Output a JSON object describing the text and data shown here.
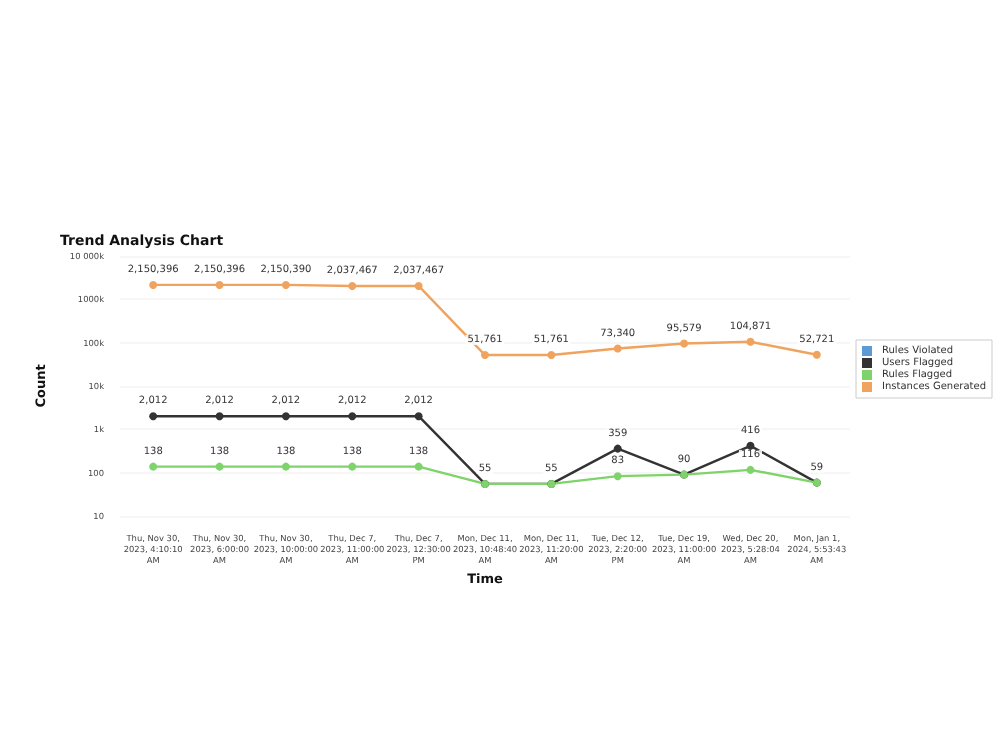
{
  "chart_data": {
    "type": "line",
    "title": "Trend Analysis Chart",
    "xlabel": "Time",
    "ylabel": "Count",
    "categories": [
      "Thu, Nov 30, 2023, 4:10:10 AM",
      "Thu, Nov 30, 2023, 6:00:00 AM",
      "Thu, Nov 30, 2023, 10:00:00 AM",
      "Thu, Dec 7, 2023, 11:00:00 AM",
      "Thu, Dec 7, 2023, 12:30:00 PM",
      "Mon, Dec 11, 2023, 10:48:40 AM",
      "Mon, Dec 11, 2023, 11:20:00 AM",
      "Tue, Dec 12, 2023, 2:20:00 PM",
      "Tue, Dec 19, 2023, 11:00:00 AM",
      "Wed, Dec 20, 2023, 5:28:04 AM",
      "Mon, Jan 1, 2024, 5:53:43 AM"
    ],
    "series": [
      {
        "name": "Rules Violated",
        "color": "#5b9bd5",
        "values": [
          null,
          null,
          null,
          null,
          null,
          null,
          null,
          null,
          null,
          null,
          null
        ]
      },
      {
        "name": "Users Flagged",
        "color": "#333333",
        "values": [
          2012,
          2012,
          2012,
          2012,
          2012,
          55,
          55,
          359,
          90,
          416,
          59
        ],
        "value_labels": [
          "2,012",
          "2,012",
          "2,012",
          "2,012",
          "2,012",
          "55",
          "55",
          "359",
          "90",
          "416",
          "59"
        ]
      },
      {
        "name": "Rules Flagged",
        "color": "#7ed36b",
        "values": [
          138,
          138,
          138,
          138,
          138,
          55,
          55,
          83,
          90,
          116,
          59
        ],
        "value_labels": [
          "138",
          "138",
          "138",
          "138",
          "138",
          null,
          null,
          "83",
          null,
          "116",
          null
        ]
      },
      {
        "name": "Instances Generated",
        "color": "#f0a35e",
        "values": [
          2150396,
          2150396,
          2150390,
          2037467,
          2037467,
          51761,
          51761,
          73340,
          95579,
          104871,
          52721
        ],
        "value_labels": [
          "2,150,396",
          "2,150,396",
          "2,150,390",
          "2,037,467",
          "2,037,467",
          "51,761",
          "51,761",
          "73,340",
          "95,579",
          "104,871",
          "52,721"
        ]
      }
    ],
    "log": "y",
    "ylim": [
      10,
      10000000
    ],
    "yticks": [
      10,
      100,
      {
        "value": 1000,
        "label": "1k"
      },
      {
        "value": 10000,
        "label": "10k"
      },
      {
        "value": 100000,
        "label": "100k"
      },
      {
        "value": 1000000,
        "label": "1000k"
      },
      {
        "value": 10000000,
        "label": "10 000k"
      }
    ],
    "grid": "y",
    "legend": "right",
    "marker": "circle",
    "line_style": "solid"
  }
}
